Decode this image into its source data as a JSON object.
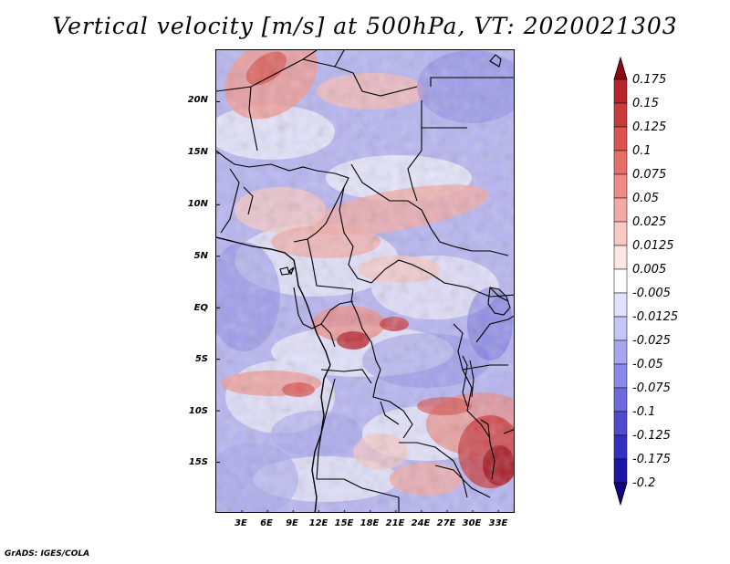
{
  "title": "Vertical velocity [m/s] at 500hPa, VT: 2020021303",
  "footer": "GrADS: IGES/COLA",
  "map": {
    "region": "Central Africa",
    "lon_range": [
      0,
      35
    ],
    "lat_range": [
      -20,
      25
    ],
    "lat_ticks": [
      {
        "value": 20,
        "label": "20N"
      },
      {
        "value": 15,
        "label": "15N"
      },
      {
        "value": 10,
        "label": "10N"
      },
      {
        "value": 5,
        "label": "5N"
      },
      {
        "value": 0,
        "label": "EQ"
      },
      {
        "value": -5,
        "label": "5S"
      },
      {
        "value": -10,
        "label": "10S"
      },
      {
        "value": -15,
        "label": "15S"
      }
    ],
    "lon_ticks": [
      {
        "value": 3,
        "label": "3E"
      },
      {
        "value": 6,
        "label": "6E"
      },
      {
        "value": 9,
        "label": "9E"
      },
      {
        "value": 12,
        "label": "12E"
      },
      {
        "value": 15,
        "label": "15E"
      },
      {
        "value": 18,
        "label": "18E"
      },
      {
        "value": 21,
        "label": "21E"
      },
      {
        "value": 24,
        "label": "24E"
      },
      {
        "value": 27,
        "label": "27E"
      },
      {
        "value": 30,
        "label": "30E"
      },
      {
        "value": 33,
        "label": "33E"
      }
    ]
  },
  "colorbar": {
    "units": "m/s",
    "labels": [
      "0.175",
      "0.15",
      "0.125",
      "0.1",
      "0.075",
      "0.05",
      "0.025",
      "0.0125",
      "0.005",
      "-0.005",
      "-0.0125",
      "-0.025",
      "-0.05",
      "-0.075",
      "-0.1",
      "-0.125",
      "-0.175",
      "-0.2"
    ],
    "colors": [
      "#a3141e",
      "#b8232c",
      "#c93a3c",
      "#d9534f",
      "#e46f66",
      "#ee8b84",
      "#f4aaa4",
      "#f8c8c3",
      "#fce6e3",
      "#ffffff",
      "#e1e1fb",
      "#c5c4f6",
      "#a8a6ef",
      "#8a88e6",
      "#6c6adc",
      "#4e4bcf",
      "#332fc0",
      "#1e18a8",
      "#130b8f"
    ],
    "top_arrow_color": "#8c0a14",
    "bottom_arrow_color": "#12057e"
  }
}
